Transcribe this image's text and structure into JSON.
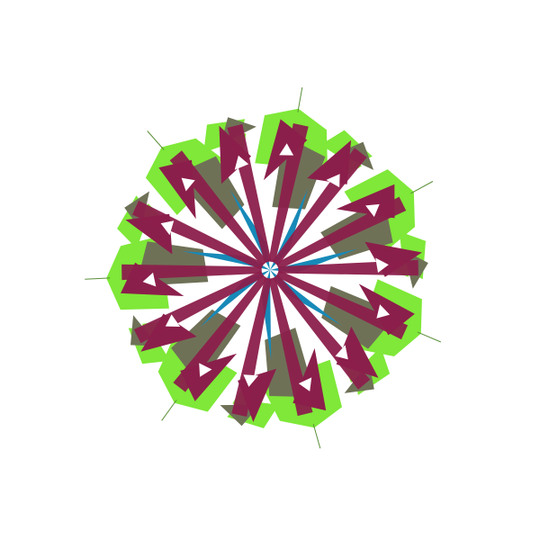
{
  "artwork": {
    "symmetry_order": 7,
    "colors": {
      "background": "#ffffff",
      "lime": "#7fe838",
      "olive": "#6f7157",
      "maroon": "#8b1f4b",
      "blue": "#1789b8",
      "stroke": "#5b8f3a"
    }
  }
}
